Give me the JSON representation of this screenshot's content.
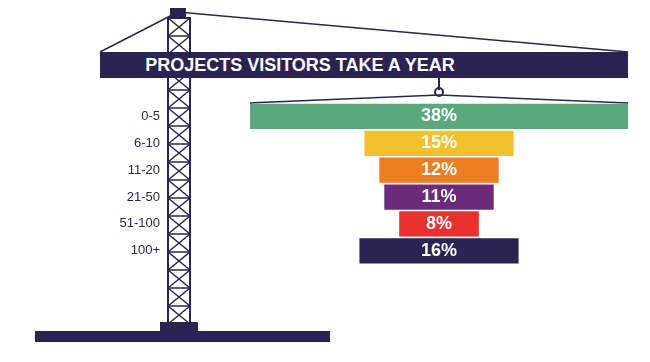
{
  "chart_data": {
    "type": "bar",
    "title": "PROJECTS VISITORS TAKE A YEAR",
    "categories": [
      "0-5",
      "6-10",
      "11-20",
      "21-50",
      "51-100",
      "100+"
    ],
    "values": [
      38,
      15,
      12,
      11,
      8,
      16
    ],
    "value_labels": [
      "38%",
      "15%",
      "12%",
      "11%",
      "8%",
      "16%"
    ],
    "colors": [
      "#5ba87c",
      "#f2c12e",
      "#ef7d22",
      "#6b2a7c",
      "#e8312f",
      "#2b2452"
    ],
    "orientation": "horizontal",
    "data_labels": true,
    "tick_labels": "y",
    "grid": false
  }
}
